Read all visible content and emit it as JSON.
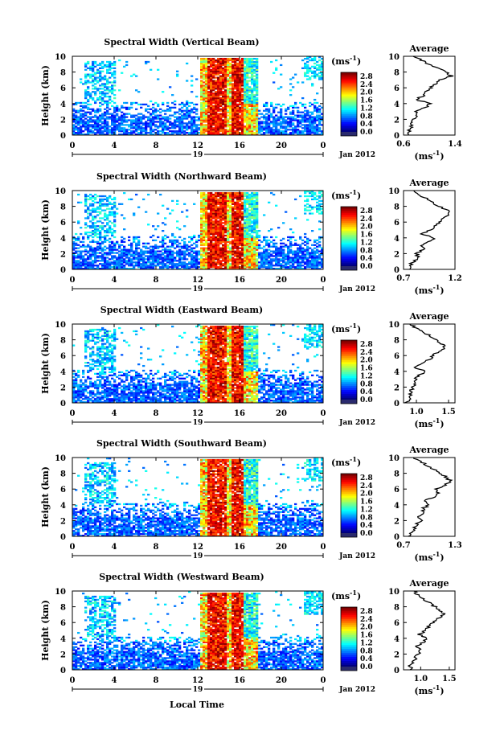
{
  "figure": {
    "xlabel_bottom": "Local Time",
    "date_label": "Jan 2012",
    "day_label": "19",
    "ylabel": "Height (km)",
    "colorbar_unit": "(ms",
    "colorbar_unit_sup": "-1",
    "colorbar_unit_close": ")",
    "avg_title": "Average",
    "avg_xlabel": "(ms",
    "avg_xlabel_sup": "-1",
    "avg_xlabel_close": ")"
  },
  "chart_data": [
    {
      "type": "heatmap",
      "title": "Spectral Width (Vertical Beam)",
      "xlabel": "Local Time",
      "ylabel": "Height (km)",
      "xlim": [
        0,
        24
      ],
      "ylim": [
        0,
        10
      ],
      "xticks": [
        "0",
        "4",
        "8",
        "12",
        "16",
        "20",
        "0"
      ],
      "yticks": [
        "0",
        "2",
        "4",
        "6",
        "8",
        "10"
      ],
      "colorbar": {
        "ticks": [
          "0.0",
          "0.4",
          "0.8",
          "1.2",
          "1.6",
          "2.0",
          "2.4",
          "2.8"
        ],
        "range": [
          0,
          3.0
        ]
      },
      "average": {
        "title": "Average",
        "xlim": [
          0.6,
          1.4
        ],
        "xticks": [
          "0.6",
          "1.4"
        ],
        "ylim": [
          0,
          10
        ],
        "height": [
          0,
          0.5,
          1,
          1.5,
          2,
          2.5,
          3,
          3.5,
          4,
          4.5,
          5,
          5.5,
          6,
          6.5,
          7,
          7.5,
          8,
          8.5,
          9,
          9.5,
          10
        ],
        "value": [
          0.7,
          0.68,
          0.72,
          0.7,
          0.74,
          0.8,
          0.78,
          0.95,
          1.0,
          0.8,
          0.9,
          0.95,
          1.02,
          1.1,
          1.18,
          1.35,
          1.25,
          1.15,
          1.0,
          0.88,
          0.75
        ]
      }
    },
    {
      "type": "heatmap",
      "title": "Spectral Width (Northward Beam)",
      "xlabel": "Local Time",
      "ylabel": "Height (km)",
      "xlim": [
        0,
        24
      ],
      "ylim": [
        0,
        10
      ],
      "xticks": [
        "0",
        "4",
        "8",
        "12",
        "16",
        "20",
        "0"
      ],
      "yticks": [
        "0",
        "2",
        "4",
        "6",
        "8",
        "10"
      ],
      "colorbar": {
        "ticks": [
          "0.0",
          "0.4",
          "0.8",
          "1.2",
          "1.6",
          "2.0",
          "2.4",
          "2.8"
        ],
        "range": [
          0,
          3.0
        ]
      },
      "average": {
        "title": "Average",
        "xlim": [
          0.7,
          1.2
        ],
        "xticks": [
          "0.7",
          "1.2"
        ],
        "ylim": [
          0,
          10
        ],
        "height": [
          0,
          0.5,
          1,
          1.5,
          2,
          2.5,
          3,
          3.5,
          4,
          4.5,
          5,
          5.5,
          6,
          6.5,
          7,
          7.5,
          8,
          8.5,
          9,
          9.5,
          10
        ],
        "value": [
          0.78,
          0.76,
          0.8,
          0.84,
          0.82,
          0.9,
          0.86,
          0.95,
          1.0,
          0.88,
          0.96,
          1.0,
          1.05,
          1.1,
          1.15,
          1.12,
          1.05,
          0.98,
          0.92,
          0.85,
          0.8
        ]
      }
    },
    {
      "type": "heatmap",
      "title": "Spectral Width (Eastward Beam)",
      "xlabel": "Local Time",
      "ylabel": "Height (km)",
      "xlim": [
        0,
        24
      ],
      "ylim": [
        0,
        10
      ],
      "xticks": [
        "0",
        "4",
        "8",
        "12",
        "16",
        "20",
        "0"
      ],
      "yticks": [
        "0",
        "2",
        "4",
        "6",
        "8",
        "10"
      ],
      "colorbar": {
        "ticks": [
          "0.0",
          "0.4",
          "0.8",
          "1.2",
          "1.6",
          "2.0",
          "2.4",
          "2.8"
        ],
        "range": [
          0,
          3.0
        ]
      },
      "average": {
        "title": "Average",
        "xlim": [
          0.8,
          1.6
        ],
        "xticks": [
          "1.0",
          "1.5"
        ],
        "ylim": [
          0,
          10
        ],
        "height": [
          0,
          0.5,
          1,
          1.5,
          2,
          2.5,
          3,
          3.5,
          4,
          4.5,
          5,
          5.5,
          6,
          6.5,
          7,
          7.5,
          8,
          8.5,
          9,
          9.5,
          10
        ],
        "value": [
          0.85,
          0.88,
          0.9,
          0.92,
          0.95,
          1.0,
          0.98,
          1.05,
          1.15,
          0.95,
          1.1,
          1.2,
          1.25,
          1.35,
          1.45,
          1.4,
          1.3,
          1.22,
          1.1,
          1.0,
          0.9
        ]
      }
    },
    {
      "type": "heatmap",
      "title": "Spectral Width (Southward Beam)",
      "xlabel": "Local Time",
      "ylabel": "Height (km)",
      "xlim": [
        0,
        24
      ],
      "ylim": [
        0,
        10
      ],
      "xticks": [
        "0",
        "4",
        "8",
        "12",
        "16",
        "20",
        "0"
      ],
      "yticks": [
        "0",
        "2",
        "4",
        "6",
        "8",
        "10"
      ],
      "colorbar": {
        "ticks": [
          "0.0",
          "0.4",
          "0.8",
          "1.2",
          "1.6",
          "2.0",
          "2.4",
          "2.8"
        ],
        "range": [
          0,
          3.0
        ]
      },
      "average": {
        "title": "Average",
        "xlim": [
          0.7,
          1.3
        ],
        "xticks": [
          "0.7",
          "1.3"
        ],
        "ylim": [
          0,
          10
        ],
        "height": [
          0,
          0.5,
          1,
          1.5,
          2,
          2.5,
          3,
          3.5,
          4,
          4.5,
          5,
          5.5,
          6,
          6.5,
          7,
          7.5,
          8,
          8.5,
          9,
          9.5,
          10
        ],
        "value": [
          0.78,
          0.8,
          0.82,
          0.85,
          0.9,
          0.88,
          0.95,
          0.92,
          1.0,
          0.95,
          1.05,
          1.1,
          1.08,
          1.18,
          1.25,
          1.2,
          1.12,
          1.05,
          0.98,
          0.9,
          0.82
        ]
      }
    },
    {
      "type": "heatmap",
      "title": "Spectral Width (Westward Beam)",
      "xlabel": "Local Time",
      "ylabel": "Height (km)",
      "xlim": [
        0,
        24
      ],
      "ylim": [
        0,
        10
      ],
      "xticks": [
        "0",
        "4",
        "8",
        "12",
        "16",
        "20",
        "0"
      ],
      "yticks": [
        "0",
        "2",
        "4",
        "6",
        "8",
        "10"
      ],
      "colorbar": {
        "ticks": [
          "0.0",
          "0.4",
          "0.8",
          "1.2",
          "1.6",
          "2.0",
          "2.4",
          "2.8"
        ],
        "range": [
          0,
          3.0
        ]
      },
      "average": {
        "title": "Average",
        "xlim": [
          0.7,
          1.6
        ],
        "xticks": [
          "1.0",
          "1.5"
        ],
        "ylim": [
          0,
          10
        ],
        "height": [
          0,
          0.5,
          1,
          1.5,
          2,
          2.5,
          3,
          3.5,
          4,
          4.5,
          5,
          5.5,
          6,
          6.5,
          7,
          7.5,
          8,
          8.5,
          9,
          9.5,
          10
        ],
        "value": [
          0.85,
          0.82,
          0.88,
          0.9,
          0.95,
          1.0,
          0.92,
          1.05,
          1.1,
          0.98,
          1.08,
          1.15,
          1.22,
          1.3,
          1.42,
          1.35,
          1.25,
          1.15,
          1.05,
          0.95,
          0.88
        ]
      }
    }
  ]
}
